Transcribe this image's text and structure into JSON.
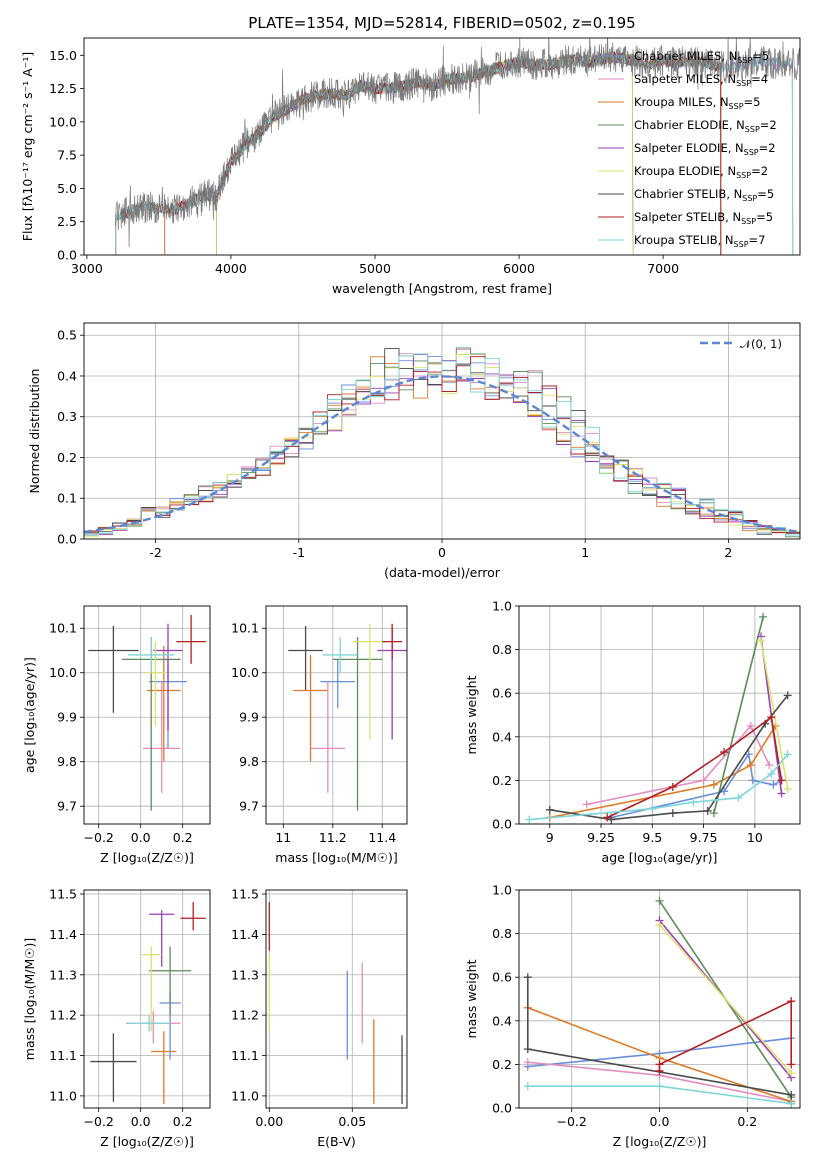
{
  "colors": {
    "Chabrier MILES": "#6a8fdb",
    "Salpeter MILES": "#e48dc3",
    "Kroupa MILES": "#dd7a26",
    "Chabrier ELODIE": "#5b8c5a",
    "Salpeter ELODIE": "#9b3fb8",
    "Kroupa ELODIE": "#dde26c",
    "Chabrier STELIB": "#4b4b4b",
    "Salpeter STELIB": "#b01f24",
    "Kroupa STELIB": "#7fd6d9"
  },
  "chart_data": [
    {
      "type": "line",
      "title": "PLATE=1354, MJD=52814, FIBERID=0502, z=0.195",
      "xlabel": "wavelength [Angstrom, rest frame]",
      "ylabel": "Flux [fλ10⁻¹⁷ erg cm⁻² s⁻¹ A⁻¹]",
      "xlim": [
        2980,
        7950
      ],
      "ylim": [
        0,
        16.3
      ],
      "xticks": [
        3000,
        4000,
        5000,
        6000,
        7000
      ],
      "yticks": [
        0.0,
        2.5,
        5.0,
        7.5,
        10.0,
        12.5,
        15.0
      ],
      "legend_position": "top-right",
      "spectrum_outline": {
        "x": [
          3200,
          3300,
          3400,
          3500,
          3600,
          3700,
          3800,
          3900,
          4000,
          4100,
          4200,
          4300,
          4400,
          4500,
          4600,
          4700,
          4800,
          4900,
          5000,
          5100,
          5200,
          5300,
          5400,
          5500,
          5600,
          5700,
          5800,
          5900,
          6000,
          6100,
          6200,
          6300,
          6400,
          6500,
          6600,
          6700,
          6800,
          6900,
          7000,
          7100,
          7200,
          7300,
          7400,
          7500,
          7600,
          7700,
          7800,
          7900
        ],
        "y": [
          2.8,
          3.4,
          3.6,
          3.5,
          3.4,
          3.9,
          4.4,
          4.5,
          7.0,
          8.3,
          9.2,
          10.4,
          11.0,
          11.7,
          12.0,
          12.1,
          12.0,
          12.7,
          12.5,
          12.5,
          12.7,
          13.0,
          12.7,
          13.2,
          13.3,
          13.5,
          13.9,
          14.2,
          14.5,
          14.3,
          14.3,
          14.5,
          14.7,
          14.5,
          14.8,
          14.8,
          14.6,
          14.3,
          14.6,
          14.4,
          14.6,
          14.5,
          14.1,
          14.1,
          14.4,
          14.6,
          14.3,
          14.4
        ]
      },
      "series": [
        {
          "name": "Chabrier MILES",
          "nssp": "5",
          "start": 3540,
          "end": 7900
        },
        {
          "name": "Salpeter MILES",
          "nssp": "4",
          "start": 3540,
          "end": 7900
        },
        {
          "name": "Kroupa MILES",
          "nssp": "5",
          "start": 3540,
          "end": 7400
        },
        {
          "name": "Chabrier ELODIE",
          "nssp": "2",
          "start": 3900,
          "end": 6790
        },
        {
          "name": "Salpeter ELODIE",
          "nssp": "2",
          "start": 3900,
          "end": 6790
        },
        {
          "name": "Kroupa ELODIE",
          "nssp": "2",
          "start": 3900,
          "end": 6790
        },
        {
          "name": "Chabrier STELIB",
          "nssp": "5",
          "start": 3200,
          "end": 7400
        },
        {
          "name": "Salpeter STELIB",
          "nssp": "5",
          "start": 3200,
          "end": 7400
        },
        {
          "name": "Kroupa STELIB",
          "nssp": "7",
          "start": 3200,
          "end": 7900
        }
      ]
    },
    {
      "type": "histogram",
      "xlabel": "(data-model)/error",
      "ylabel": "Normed distribution",
      "xlim": [
        -2.5,
        2.5
      ],
      "ylim": [
        0,
        0.53
      ],
      "xticks": [
        -2,
        -1,
        0,
        1,
        2
      ],
      "yticks": [
        0.0,
        0.1,
        0.2,
        0.3,
        0.4,
        0.5
      ],
      "grid": true,
      "legend": "𝒩(0, 1)",
      "legend_position": "top-right",
      "bin_edges": [
        -2.5,
        -2.4,
        -2.3,
        -2.2,
        -2.1,
        -2.0,
        -1.9,
        -1.8,
        -1.7,
        -1.6,
        -1.5,
        -1.4,
        -1.3,
        -1.2,
        -1.1,
        -1.0,
        -0.9,
        -0.8,
        -0.7,
        -0.6,
        -0.5,
        -0.4,
        -0.3,
        -0.2,
        -0.1,
        0.0,
        0.1,
        0.2,
        0.3,
        0.4,
        0.5,
        0.6,
        0.7,
        0.8,
        0.9,
        1.0,
        1.1,
        1.2,
        1.3,
        1.4,
        1.5,
        1.6,
        1.7,
        1.8,
        1.9,
        2.0,
        2.1,
        2.2,
        2.3,
        2.4,
        2.5
      ],
      "envelope_high": [
        0.02,
        0.03,
        0.04,
        0.05,
        0.08,
        0.08,
        0.1,
        0.11,
        0.13,
        0.14,
        0.16,
        0.18,
        0.2,
        0.23,
        0.26,
        0.28,
        0.32,
        0.36,
        0.39,
        0.42,
        0.45,
        0.47,
        0.46,
        0.46,
        0.47,
        0.45,
        0.48,
        0.46,
        0.45,
        0.42,
        0.42,
        0.42,
        0.38,
        0.35,
        0.32,
        0.29,
        0.23,
        0.2,
        0.18,
        0.16,
        0.14,
        0.13,
        0.1,
        0.1,
        0.08,
        0.07,
        0.05,
        0.04,
        0.03,
        0.02
      ],
      "envelope_low": [
        0.005,
        0.01,
        0.02,
        0.03,
        0.05,
        0.05,
        0.07,
        0.08,
        0.09,
        0.1,
        0.12,
        0.14,
        0.15,
        0.17,
        0.2,
        0.22,
        0.24,
        0.26,
        0.3,
        0.32,
        0.33,
        0.33,
        0.32,
        0.34,
        0.36,
        0.35,
        0.35,
        0.36,
        0.34,
        0.33,
        0.32,
        0.29,
        0.26,
        0.23,
        0.2,
        0.19,
        0.16,
        0.14,
        0.11,
        0.1,
        0.08,
        0.07,
        0.06,
        0.05,
        0.04,
        0.03,
        0.02,
        0.01,
        0.01,
        0.005
      ],
      "normal_curve": {
        "mean": 0,
        "sigma": 1
      }
    },
    {
      "type": "errorbar",
      "xlabel": "Z [log₁₀(Z/Z☉)]",
      "ylabel": "age  [log₁₀(age/yr)]",
      "xlim": [
        -0.27,
        0.33
      ],
      "ylim": [
        9.66,
        10.15
      ],
      "xticks": [
        -0.2,
        0.0,
        0.2
      ],
      "xtick_labels": [
        "−0.2",
        "0.0",
        "0.2"
      ],
      "yticks": [
        9.7,
        9.8,
        9.9,
        10.0,
        10.1
      ],
      "grid": true,
      "points": [
        {
          "series": "Chabrier STELIB",
          "x": -0.13,
          "xerr": 0.12,
          "y": 10.05,
          "yerr_lo": 0.14,
          "yerr_hi": 0.055
        },
        {
          "series": "Chabrier MILES",
          "x": 0.13,
          "xerr": 0.09,
          "y": 9.98,
          "yerr_lo": 0.15,
          "yerr_hi": 0.05
        },
        {
          "series": "Salpeter MILES",
          "x": 0.1,
          "xerr": 0.09,
          "y": 9.83,
          "yerr_lo": 0.1,
          "yerr_hi": 0.15
        },
        {
          "series": "Kroupa MILES",
          "x": 0.11,
          "xerr": 0.08,
          "y": 9.96,
          "yerr_lo": 0.16,
          "yerr_hi": 0.1
        },
        {
          "series": "Chabrier ELODIE",
          "x": 0.05,
          "xerr": 0.14,
          "y": 10.03,
          "yerr_lo": 0.34,
          "yerr_hi": 0.05
        },
        {
          "series": "Salpeter ELODIE",
          "x": 0.13,
          "xerr": 0.07,
          "y": 10.05,
          "yerr_lo": 0.18,
          "yerr_hi": 0.06
        },
        {
          "series": "Kroupa ELODIE",
          "x": 0.07,
          "xerr": 0.05,
          "y": 10.0,
          "yerr_lo": 0.12,
          "yerr_hi": 0.07
        },
        {
          "series": "Salpeter STELIB",
          "x": 0.24,
          "xerr": 0.07,
          "y": 10.07,
          "yerr_lo": 0.05,
          "yerr_hi": 0.06
        },
        {
          "series": "Kroupa STELIB",
          "x": 0.05,
          "xerr": 0.11,
          "y": 10.04,
          "yerr_lo": 0.04,
          "yerr_hi": 0.04
        }
      ]
    },
    {
      "type": "errorbar",
      "xlabel": "mass [log₁₀(M/M☉)]",
      "ylabel": "",
      "xlim": [
        10.93,
        11.5
      ],
      "ylim": [
        9.66,
        10.15
      ],
      "xticks": [
        11.0,
        11.2,
        11.4
      ],
      "yticks": [
        9.7,
        9.8,
        9.9,
        10.0,
        10.1
      ],
      "grid": true,
      "points": [
        {
          "series": "Chabrier STELIB",
          "x": 11.09,
          "xerr": 0.07,
          "y": 10.05,
          "yerr_lo": 0.09,
          "yerr_hi": 0.055
        },
        {
          "series": "Kroupa MILES",
          "x": 11.11,
          "xerr": 0.07,
          "y": 9.96,
          "yerr_lo": 0.16,
          "yerr_hi": 0.08
        },
        {
          "series": "Chabrier MILES",
          "x": 11.22,
          "xerr": 0.07,
          "y": 9.98,
          "yerr_lo": 0.06,
          "yerr_hi": 0.05
        },
        {
          "series": "Salpeter MILES",
          "x": 11.18,
          "xerr": 0.07,
          "y": 9.83,
          "yerr_lo": 0.1,
          "yerr_hi": 0.15
        },
        {
          "series": "Chabrier ELODIE",
          "x": 11.3,
          "xerr": 0.1,
          "y": 10.03,
          "yerr_lo": 0.34,
          "yerr_hi": 0.05
        },
        {
          "series": "Salpeter ELODIE",
          "x": 11.44,
          "xerr": 0.06,
          "y": 10.05,
          "yerr_lo": 0.2,
          "yerr_hi": 0.05
        },
        {
          "series": "Kroupa ELODIE",
          "x": 11.35,
          "xerr": 0.07,
          "y": 10.07,
          "yerr_lo": 0.22,
          "yerr_hi": 0.04
        },
        {
          "series": "Salpeter STELIB",
          "x": 11.44,
          "xerr": 0.04,
          "y": 10.07,
          "yerr_lo": 0.04,
          "yerr_hi": 0.04
        },
        {
          "series": "Kroupa STELIB",
          "x": 11.23,
          "xerr": 0.07,
          "y": 10.04,
          "yerr_lo": 0.04,
          "yerr_hi": 0.04
        }
      ]
    },
    {
      "type": "line",
      "xlabel": "age  [log₁₀(age/yr)]",
      "ylabel": "mass weight",
      "xlim": [
        8.85,
        10.22
      ],
      "ylim": [
        0,
        1.0
      ],
      "xticks": [
        9.0,
        9.25,
        9.5,
        9.75,
        10.0
      ],
      "yticks": [
        0.0,
        0.2,
        0.4,
        0.6,
        0.8,
        1.0
      ],
      "grid": true,
      "series": [
        {
          "name": "Chabrier MILES",
          "x": [
            9.3,
            9.85,
            9.97,
            9.99,
            10.09,
            10.13
          ],
          "y": [
            0.03,
            0.15,
            0.32,
            0.2,
            0.18,
            0.2
          ]
        },
        {
          "name": "Salpeter MILES",
          "x": [
            9.18,
            9.75,
            9.98,
            10.07
          ],
          "y": [
            0.09,
            0.2,
            0.45,
            0.27
          ]
        },
        {
          "name": "Kroupa MILES",
          "x": [
            9.0,
            9.8,
            9.98,
            10.1
          ],
          "y": [
            0.03,
            0.18,
            0.27,
            0.45
          ]
        },
        {
          "name": "Chabrier ELODIE",
          "x": [
            9.8,
            10.04
          ],
          "y": [
            0.05,
            0.95
          ]
        },
        {
          "name": "Salpeter ELODIE",
          "x": [
            10.03,
            10.13
          ],
          "y": [
            0.86,
            0.14
          ]
        },
        {
          "name": "Kroupa ELODIE",
          "x": [
            10.03,
            10.16
          ],
          "y": [
            0.84,
            0.16
          ]
        },
        {
          "name": "Chabrier STELIB",
          "x": [
            9.0,
            9.3,
            9.6,
            9.77,
            10.05,
            10.16
          ],
          "y": [
            0.065,
            0.02,
            0.05,
            0.06,
            0.46,
            0.59
          ]
        },
        {
          "name": "Salpeter STELIB",
          "x": [
            9.28,
            9.6,
            9.85,
            10.08,
            10.13
          ],
          "y": [
            0.03,
            0.17,
            0.33,
            0.49,
            0.2
          ]
        },
        {
          "name": "Kroupa STELIB",
          "x": [
            8.9,
            9.5,
            9.7,
            9.92,
            10.08,
            10.16
          ],
          "y": [
            0.02,
            0.07,
            0.1,
            0.12,
            0.23,
            0.32
          ]
        }
      ]
    },
    {
      "type": "errorbar",
      "xlabel": "Z [log₁₀(Z/Z☉)]",
      "ylabel": "mass [log₁₀(M/M☉)]",
      "xlim": [
        -0.27,
        0.33
      ],
      "ylim": [
        10.97,
        11.51
      ],
      "xticks": [
        -0.2,
        0.0,
        0.2
      ],
      "xtick_labels": [
        "−0.2",
        "0.0",
        "0.2"
      ],
      "yticks": [
        11.0,
        11.1,
        11.2,
        11.3,
        11.4,
        11.5
      ],
      "grid": true,
      "points": [
        {
          "series": "Chabrier STELIB",
          "x": -0.13,
          "xerr": 0.11,
          "y": 11.085,
          "yerr_lo": 0.1,
          "yerr_hi": 0.07
        },
        {
          "series": "Kroupa MILES",
          "x": 0.11,
          "xerr": 0.06,
          "y": 11.11,
          "yerr_lo": 0.13,
          "yerr_hi": 0.05
        },
        {
          "series": "Chabrier MILES",
          "x": 0.14,
          "xerr": 0.05,
          "y": 11.23,
          "yerr_lo": 0.14,
          "yerr_hi": 0.03
        },
        {
          "series": "Salpeter MILES",
          "x": 0.06,
          "xerr": 0.13,
          "y": 11.18,
          "yerr_lo": 0.05,
          "yerr_hi": 0.03
        },
        {
          "series": "Chabrier ELODIE",
          "x": 0.14,
          "xerr": 0.1,
          "y": 11.31,
          "yerr_lo": 0.11,
          "yerr_hi": 0.06
        },
        {
          "series": "Salpeter ELODIE",
          "x": 0.1,
          "xerr": 0.06,
          "y": 11.45,
          "yerr_lo": 0.13,
          "yerr_hi": 0.01
        },
        {
          "series": "Kroupa ELODIE",
          "x": 0.05,
          "xerr": 0.05,
          "y": 11.35,
          "yerr_lo": 0.19,
          "yerr_hi": 0.02
        },
        {
          "series": "Salpeter STELIB",
          "x": 0.25,
          "xerr": 0.06,
          "y": 11.44,
          "yerr_lo": 0.03,
          "yerr_hi": 0.04
        },
        {
          "series": "Kroupa STELIB",
          "x": 0.04,
          "xerr": 0.1,
          "y": 11.18,
          "yerr_lo": 0.02,
          "yerr_hi": 0.02
        }
      ]
    },
    {
      "type": "errorbar",
      "xlabel": "E(B-V)",
      "ylabel": "",
      "xlim": [
        -0.002,
        0.083
      ],
      "ylim": [
        10.97,
        11.51
      ],
      "xticks": [
        0.0,
        0.05
      ],
      "xtick_labels": [
        "0.00",
        "0.05"
      ],
      "yticks": [
        11.0,
        11.1,
        11.2,
        11.3,
        11.4,
        11.5
      ],
      "grid": true,
      "points": [
        {
          "series": "Salpeter STELIB",
          "x": 0.0,
          "xerr": 0.0,
          "y": 11.4,
          "yerr_lo": 0.04,
          "yerr_hi": 0.08
        },
        {
          "series": "Kroupa ELODIE",
          "x": 0.0,
          "xerr": 0.0,
          "y": 11.25,
          "yerr_lo": 0.09,
          "yerr_hi": 0.1
        },
        {
          "series": "Chabrier MILES",
          "x": 0.047,
          "xerr": 0.0,
          "y": 11.2,
          "yerr_lo": 0.11,
          "yerr_hi": 0.11
        },
        {
          "series": "Salpeter MILES",
          "x": 0.056,
          "xerr": 0.0,
          "y": 11.23,
          "yerr_lo": 0.1,
          "yerr_hi": 0.1
        },
        {
          "series": "Kroupa MILES",
          "x": 0.063,
          "xerr": 0.0,
          "y": 11.09,
          "yerr_lo": 0.11,
          "yerr_hi": 0.1
        },
        {
          "series": "Chabrier STELIB",
          "x": 0.08,
          "xerr": 0.0,
          "y": 11.07,
          "yerr_lo": 0.09,
          "yerr_hi": 0.08
        }
      ]
    },
    {
      "type": "line",
      "xlabel": "Z [log₁₀(Z/Z☉)]",
      "ylabel": "mass weight",
      "xlim": [
        -0.32,
        0.32
      ],
      "ylim": [
        0,
        1.0
      ],
      "xticks": [
        -0.2,
        0.0,
        0.2
      ],
      "xtick_labels": [
        "−0.2",
        "0.0",
        "0.2"
      ],
      "yticks": [
        0.0,
        0.2,
        0.4,
        0.6,
        0.8,
        1.0
      ],
      "grid": true,
      "series": [
        {
          "name": "Chabrier MILES",
          "x": [
            -0.3,
            0.0,
            0.3
          ],
          "y": [
            0.19,
            0.25,
            0.32
          ]
        },
        {
          "name": "Salpeter MILES",
          "x": [
            -0.3,
            0.0,
            0.3
          ],
          "y": [
            0.21,
            0.15,
            0.03
          ]
        },
        {
          "name": "Kroupa MILES",
          "x": [
            -0.3,
            0.0,
            0.3
          ],
          "y": [
            0.46,
            0.23,
            0.03
          ]
        },
        {
          "name": "Chabrier ELODIE",
          "x": [
            0.0,
            0.3
          ],
          "y": [
            0.95,
            0.05
          ]
        },
        {
          "name": "Salpeter ELODIE",
          "x": [
            0.0,
            0.3
          ],
          "y": [
            0.86,
            0.14
          ]
        },
        {
          "name": "Kroupa ELODIE",
          "x": [
            0.0,
            0.3
          ],
          "y": [
            0.84,
            0.16
          ]
        },
        {
          "name": "Chabrier STELIB",
          "x": [
            -0.3,
            -0.3,
            0.3,
            0.3
          ],
          "y": [
            0.6,
            0.27,
            0.06,
            0.02
          ]
        },
        {
          "name": "Salpeter STELIB",
          "x": [
            0.0,
            0.0,
            0.3,
            0.3
          ],
          "y": [
            0.17,
            0.2,
            0.49,
            0.2
          ]
        },
        {
          "name": "Kroupa STELIB",
          "x": [
            -0.3,
            0.0,
            0.3
          ],
          "y": [
            0.1,
            0.1,
            0.02
          ]
        }
      ]
    }
  ]
}
